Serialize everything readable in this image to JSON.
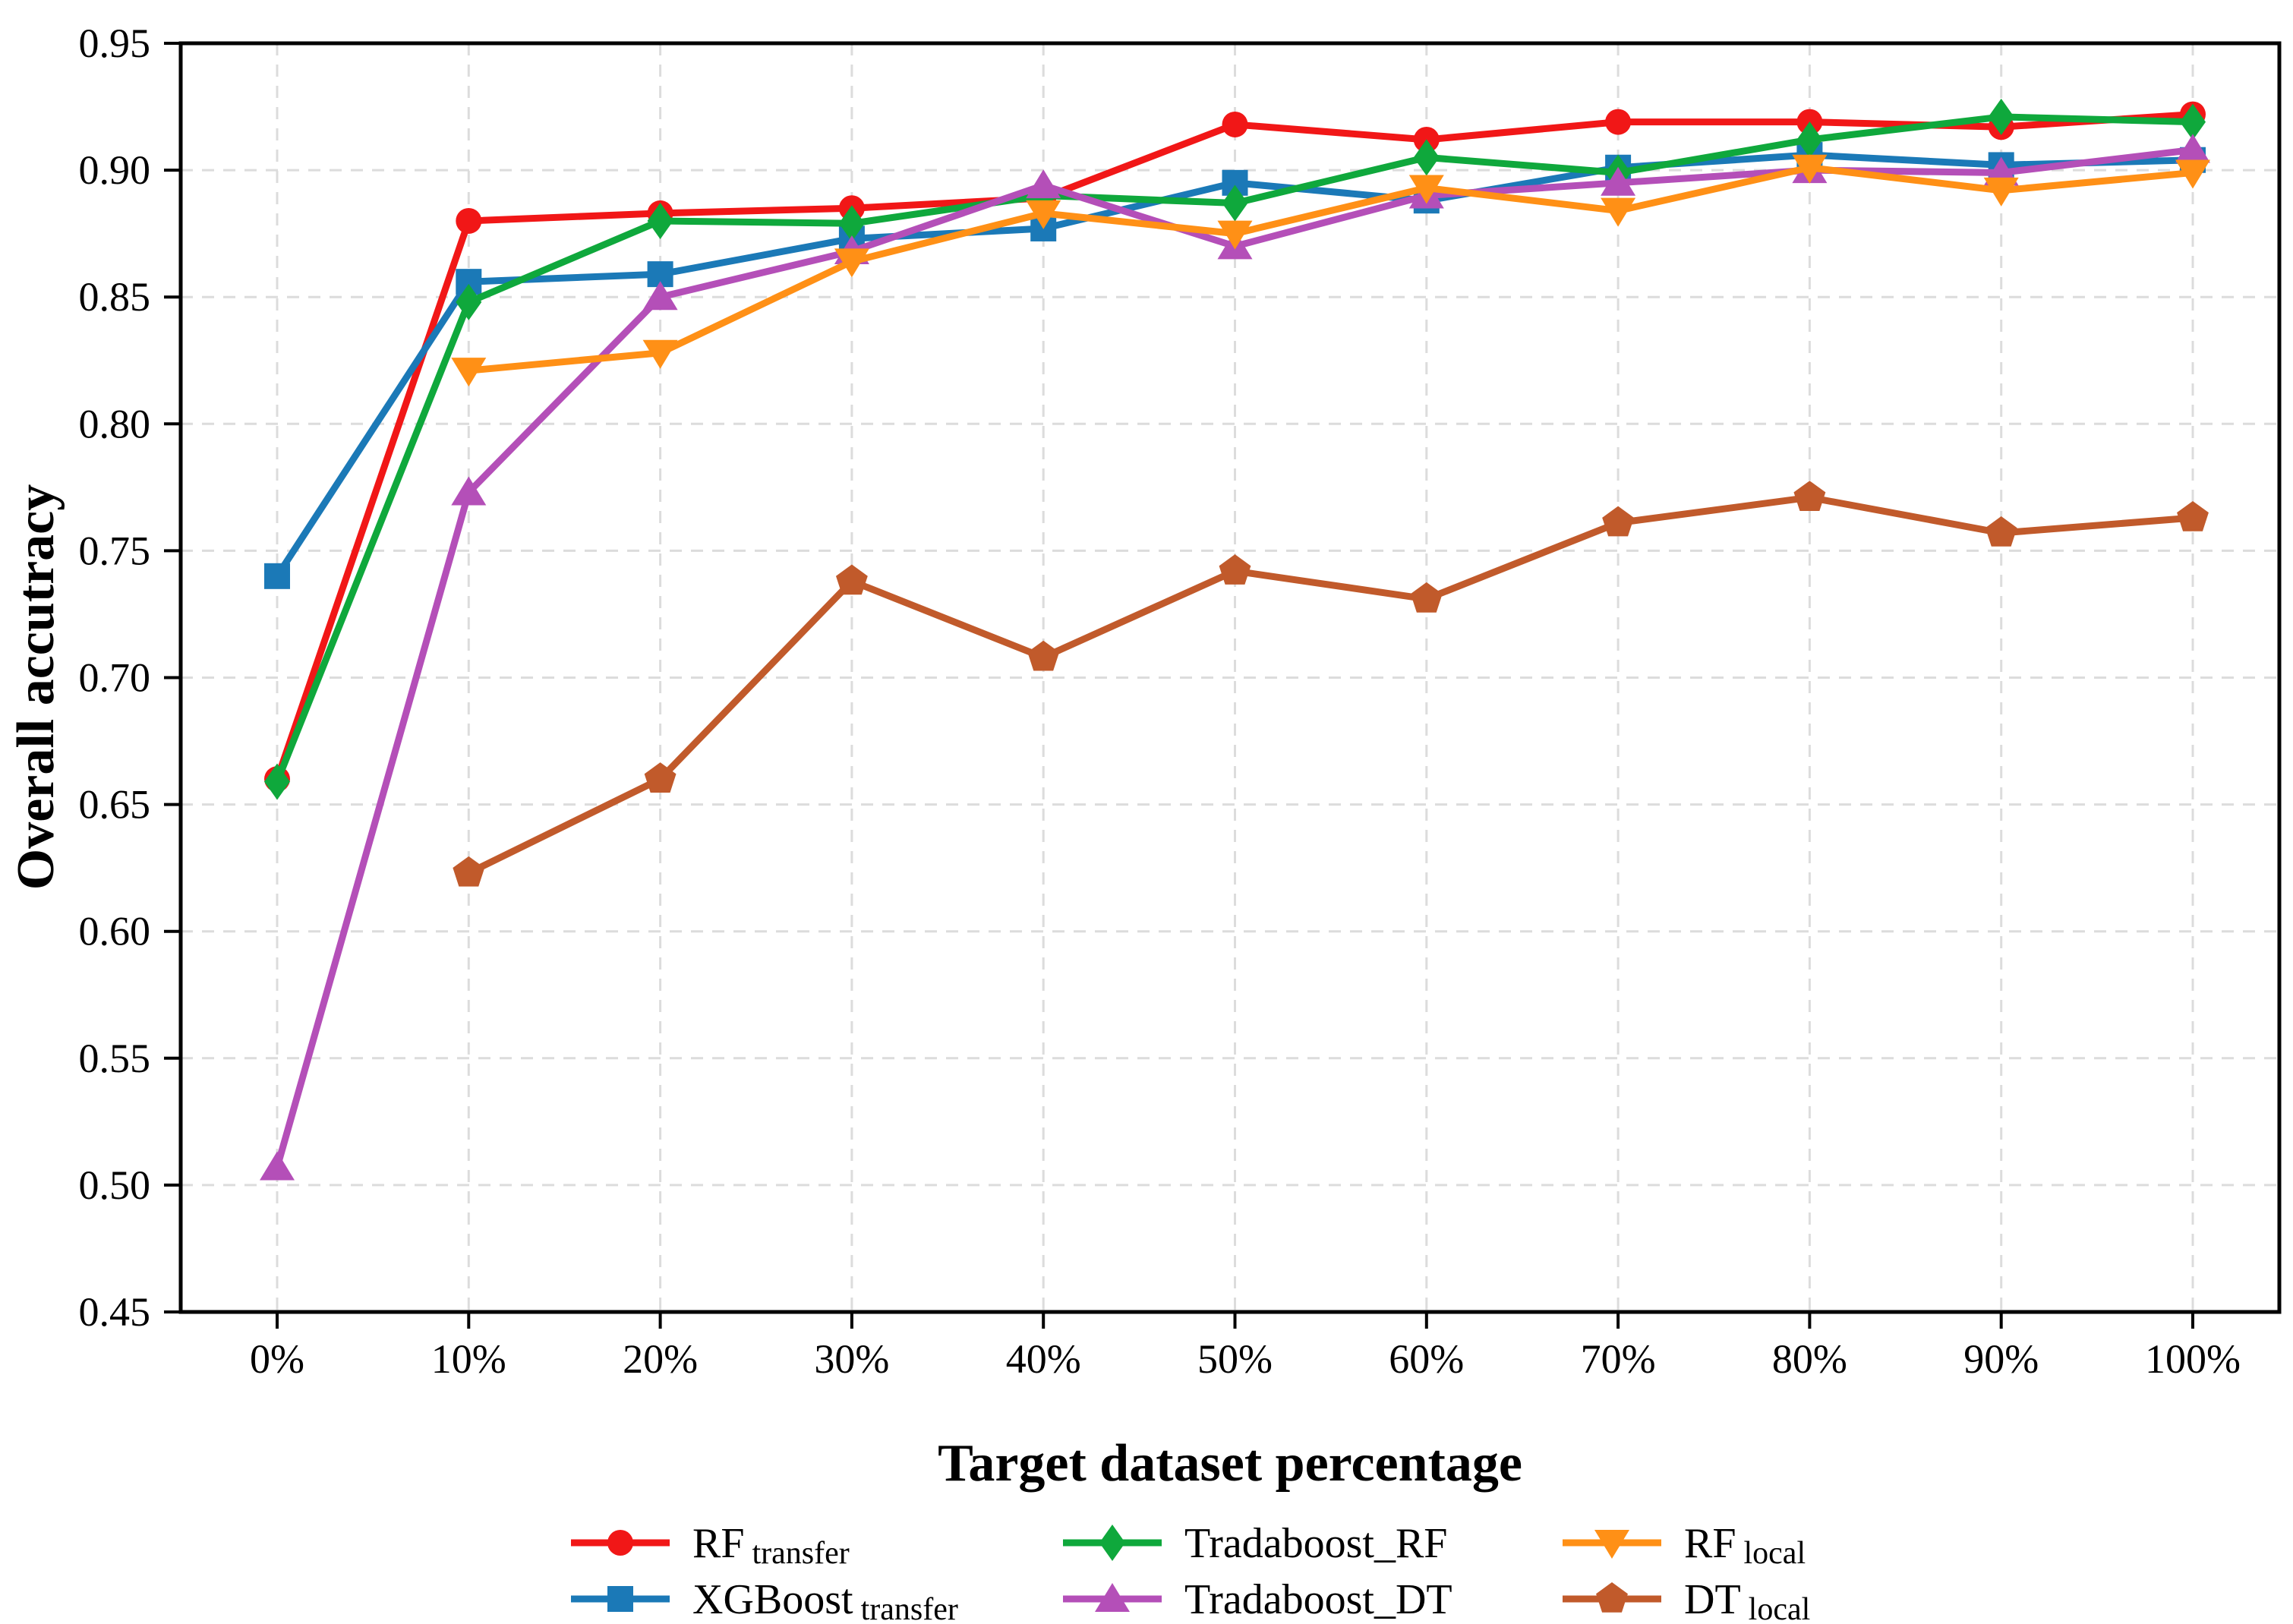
{
  "chart_data": {
    "type": "line",
    "title": "",
    "xlabel": "Target dataset percentage",
    "ylabel": "Overall accutracy",
    "x_tick_labels": [
      "0%",
      "10%",
      "20%",
      "30%",
      "40%",
      "50%",
      "60%",
      "70%",
      "80%",
      "90%",
      "100%"
    ],
    "x_values": [
      0,
      10,
      20,
      30,
      40,
      50,
      60,
      70,
      80,
      90,
      100
    ],
    "ylim": [
      0.45,
      0.95
    ],
    "y_ticks": [
      0.45,
      0.5,
      0.55,
      0.6,
      0.65,
      0.7,
      0.75,
      0.8,
      0.85,
      0.9,
      0.95
    ],
    "grid": true,
    "grid_style": "dashed",
    "grid_color": "#dcdcdc",
    "legend_position": "below-bottom, 3 columns x 2 rows, no frame",
    "series": [
      {
        "name": "RF transfer",
        "label_main": "RF",
        "label_sub": "transfer",
        "color": "#f11717",
        "marker": "circle",
        "values": [
          0.66,
          0.88,
          0.883,
          0.885,
          0.889,
          0.918,
          0.912,
          0.919,
          0.919,
          0.917,
          0.922
        ]
      },
      {
        "name": "XGBoost transfer",
        "label_main": "XGBoost",
        "label_sub": "transfer",
        "color": "#1b79b7",
        "marker": "square",
        "values": [
          0.74,
          0.856,
          0.859,
          0.873,
          0.877,
          0.895,
          0.888,
          0.901,
          0.906,
          0.902,
          0.904
        ]
      },
      {
        "name": "Tradaboost_RF",
        "label_main": "Tradaboost_RF",
        "label_sub": "",
        "color": "#0fa83c",
        "marker": "diamond",
        "values": [
          0.659,
          0.848,
          0.88,
          0.879,
          0.89,
          0.887,
          0.905,
          0.899,
          0.912,
          0.921,
          0.919
        ]
      },
      {
        "name": "Tradaboost_DT",
        "label_main": "Tradaboost_DT",
        "label_sub": "",
        "color": "#b44fb8",
        "marker": "triangle-up",
        "values": [
          0.507,
          0.773,
          0.85,
          0.868,
          0.894,
          0.87,
          0.89,
          0.895,
          0.9,
          0.899,
          0.908
        ]
      },
      {
        "name": "RF local",
        "label_main": "RF",
        "label_sub": "local",
        "color": "#ff9016",
        "marker": "triangle-down",
        "values": [
          null,
          0.821,
          0.828,
          0.864,
          0.883,
          0.875,
          0.893,
          0.884,
          0.901,
          0.892,
          0.899
        ]
      },
      {
        "name": "DT local",
        "label_main": "DT",
        "label_sub": "local",
        "color": "#c15a2b",
        "marker": "pentagon",
        "values": [
          null,
          0.623,
          0.66,
          0.738,
          0.708,
          0.742,
          0.731,
          0.761,
          0.771,
          0.757,
          0.763
        ]
      }
    ],
    "axis_color": "#000000",
    "background_color": "#ffffff"
  }
}
